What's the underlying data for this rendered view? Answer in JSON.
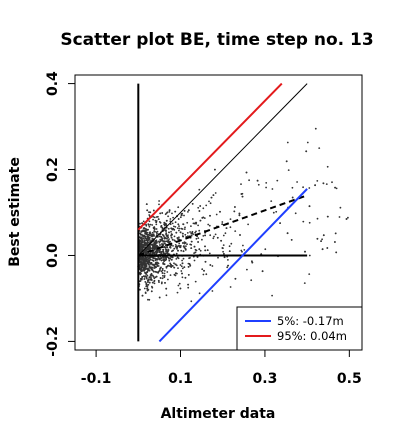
{
  "chart_data": {
    "type": "scatter",
    "title": "Scatter plot BE, time step no. 13",
    "xlabel": "Altimeter data",
    "ylabel": "Best estimate",
    "xlim": [
      -0.15,
      0.53
    ],
    "ylim": [
      -0.22,
      0.42
    ],
    "xticks": [
      -0.1,
      0.1,
      0.3,
      0.5
    ],
    "xtick_labels": [
      "-0.1",
      "0.1",
      "0.3",
      "0.5"
    ],
    "yticks": [
      -0.2,
      0.0,
      0.2,
      0.4
    ],
    "ytick_labels": [
      "-0.2",
      "0.0",
      "0.2",
      "0.4"
    ],
    "grid": false,
    "legend_position": "bottom-right",
    "points_description_count": 1800,
    "lines": [
      {
        "role": "reference-vertical",
        "x": [
          0.0,
          0.0
        ],
        "y": [
          -0.2,
          0.4
        ],
        "color": "#000000",
        "style": "solid",
        "width": 2
      },
      {
        "role": "reference-horizontal",
        "x": [
          0.0,
          0.4
        ],
        "y": [
          0.0,
          0.0
        ],
        "color": "#000000",
        "style": "solid",
        "width": 2
      },
      {
        "role": "one-to-one",
        "x": [
          0.0,
          0.4
        ],
        "y": [
          0.0,
          0.4
        ],
        "color": "#000000",
        "style": "solid",
        "width": 1
      },
      {
        "role": "regression",
        "x": [
          0.0,
          0.4
        ],
        "y": [
          0.0,
          0.14
        ],
        "color": "#000000",
        "style": "dashed",
        "width": 2
      },
      {
        "role": "quantile-95",
        "x": [
          0.0,
          0.34
        ],
        "y": [
          0.06,
          0.4
        ],
        "color": "#e31a1c",
        "style": "solid",
        "width": 2
      },
      {
        "role": "quantile-5",
        "x": [
          0.05,
          0.4
        ],
        "y": [
          -0.2,
          0.155
        ],
        "color": "#1f3fff",
        "style": "solid",
        "width": 2
      }
    ],
    "series": [
      {
        "name": "5%: -0.17m",
        "color": "#1f3fff"
      },
      {
        "name": "95%:  0.04m",
        "color": "#e31a1c"
      }
    ],
    "point_color": "#333333"
  }
}
